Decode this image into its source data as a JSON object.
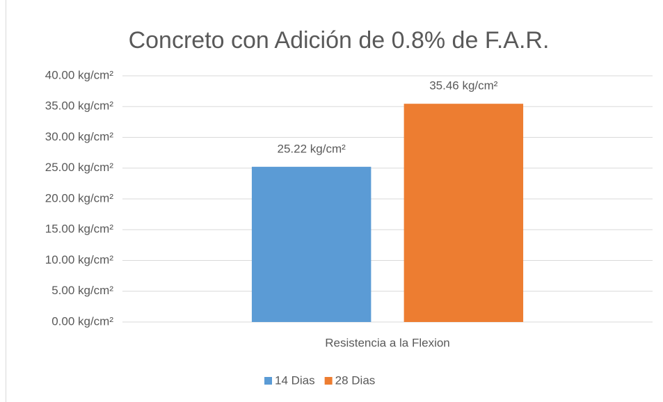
{
  "chart_data": {
    "type": "bar",
    "title": "Concreto con Adición de 0.8% de F.A.R.",
    "categories": [
      "Resistencia a la Flexion"
    ],
    "series": [
      {
        "name": "14 Dias",
        "color": "#5b9bd5",
        "values": [
          25.22
        ],
        "value_labels": [
          "25.22 kg/cm²"
        ]
      },
      {
        "name": "28 Dias",
        "color": "#ed7d31",
        "values": [
          35.46
        ],
        "value_labels": [
          "35.46 kg/cm²"
        ]
      }
    ],
    "ylim": [
      0,
      40
    ],
    "yticks": [
      {
        "value": 0,
        "label": "0.00 kg/cm²"
      },
      {
        "value": 5,
        "label": "5.00 kg/cm²"
      },
      {
        "value": 10,
        "label": "10.00 kg/cm²"
      },
      {
        "value": 15,
        "label": "15.00 kg/cm²"
      },
      {
        "value": 20,
        "label": "20.00 kg/cm²"
      },
      {
        "value": 25,
        "label": "25.00 kg/cm²"
      },
      {
        "value": 30,
        "label": "30.00 kg/cm²"
      },
      {
        "value": 35,
        "label": "35.00 kg/cm²"
      },
      {
        "value": 40,
        "label": "40.00 kg/cm²"
      }
    ],
    "grid": true,
    "legend": "bottom"
  }
}
